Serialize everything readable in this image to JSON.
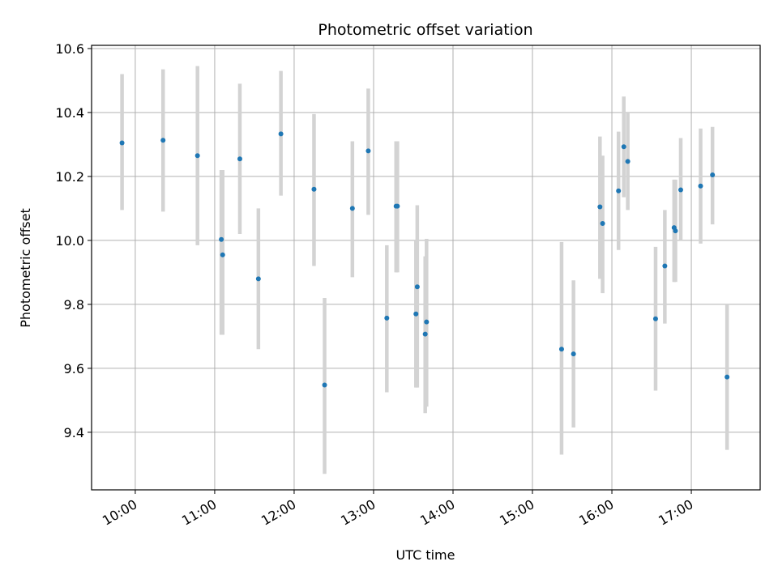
{
  "chart_data": {
    "type": "scatter",
    "title": "Photometric offset variation",
    "xlabel": "UTC time",
    "ylabel": "Photometric offset",
    "x_axis_type": "time",
    "xlim": [
      "09:27",
      "17:52"
    ],
    "ylim": [
      9.22,
      10.61
    ],
    "x_ticks": [
      "10:00",
      "11:00",
      "12:00",
      "13:00",
      "14:00",
      "15:00",
      "16:00",
      "17:00"
    ],
    "y_ticks": [
      9.4,
      9.6,
      9.8,
      10.0,
      10.2,
      10.4,
      10.6
    ],
    "y_tick_labels": [
      "9.4",
      "9.6",
      "9.8",
      "10.0",
      "10.2",
      "10.4",
      "10.6"
    ],
    "grid": true,
    "point_color": "#1f77b4",
    "errorbar_color": "#d3d3d3",
    "points": [
      {
        "time": "09:50",
        "y": 10.305,
        "ylow": 10.095,
        "yhigh": 10.52
      },
      {
        "time": "10:21",
        "y": 10.313,
        "ylow": 10.09,
        "yhigh": 10.535
      },
      {
        "time": "10:47",
        "y": 10.265,
        "ylow": 9.985,
        "yhigh": 10.545
      },
      {
        "time": "11:05",
        "y": 10.003,
        "ylow": 9.705,
        "yhigh": 10.22
      },
      {
        "time": "11:06",
        "y": 9.955,
        "ylow": 9.705,
        "yhigh": 10.22
      },
      {
        "time": "11:19",
        "y": 10.255,
        "ylow": 10.02,
        "yhigh": 10.49
      },
      {
        "time": "11:33",
        "y": 9.88,
        "ylow": 9.66,
        "yhigh": 10.1
      },
      {
        "time": "11:50",
        "y": 10.333,
        "ylow": 10.14,
        "yhigh": 10.53
      },
      {
        "time": "12:15",
        "y": 10.16,
        "ylow": 9.92,
        "yhigh": 10.395
      },
      {
        "time": "12:23",
        "y": 9.548,
        "ylow": 9.27,
        "yhigh": 9.82
      },
      {
        "time": "12:44",
        "y": 10.1,
        "ylow": 9.885,
        "yhigh": 10.31
      },
      {
        "time": "12:56",
        "y": 10.28,
        "ylow": 10.08,
        "yhigh": 10.475
      },
      {
        "time": "13:10",
        "y": 9.757,
        "ylow": 9.525,
        "yhigh": 9.985
      },
      {
        "time": "13:17",
        "y": 10.107,
        "ylow": 9.9,
        "yhigh": 10.31
      },
      {
        "time": "13:18",
        "y": 10.107,
        "ylow": 9.9,
        "yhigh": 10.31
      },
      {
        "time": "13:32",
        "y": 9.77,
        "ylow": 9.54,
        "yhigh": 10.0
      },
      {
        "time": "13:33",
        "y": 9.855,
        "ylow": 9.54,
        "yhigh": 10.11
      },
      {
        "time": "13:39",
        "y": 9.707,
        "ylow": 9.46,
        "yhigh": 9.95
      },
      {
        "time": "13:40",
        "y": 9.745,
        "ylow": 9.48,
        "yhigh": 10.005
      },
      {
        "time": "15:22",
        "y": 9.66,
        "ylow": 9.33,
        "yhigh": 9.995
      },
      {
        "time": "15:31",
        "y": 9.645,
        "ylow": 9.415,
        "yhigh": 9.875
      },
      {
        "time": "15:51",
        "y": 10.105,
        "ylow": 9.88,
        "yhigh": 10.325
      },
      {
        "time": "15:53",
        "y": 10.053,
        "ylow": 9.835,
        "yhigh": 10.265
      },
      {
        "time": "16:05",
        "y": 10.155,
        "ylow": 9.97,
        "yhigh": 10.34
      },
      {
        "time": "16:09",
        "y": 10.293,
        "ylow": 10.135,
        "yhigh": 10.45
      },
      {
        "time": "16:12",
        "y": 10.247,
        "ylow": 10.095,
        "yhigh": 10.4
      },
      {
        "time": "16:33",
        "y": 9.755,
        "ylow": 9.53,
        "yhigh": 9.98
      },
      {
        "time": "16:40",
        "y": 9.92,
        "ylow": 9.74,
        "yhigh": 10.095
      },
      {
        "time": "16:47",
        "y": 10.04,
        "ylow": 9.87,
        "yhigh": 10.19
      },
      {
        "time": "16:48",
        "y": 10.03,
        "ylow": 9.87,
        "yhigh": 10.19
      },
      {
        "time": "16:52",
        "y": 10.158,
        "ylow": 10.0,
        "yhigh": 10.32
      },
      {
        "time": "17:07",
        "y": 10.17,
        "ylow": 9.99,
        "yhigh": 10.35
      },
      {
        "time": "17:16",
        "y": 10.205,
        "ylow": 10.05,
        "yhigh": 10.355
      },
      {
        "time": "17:27",
        "y": 9.573,
        "ylow": 9.345,
        "yhigh": 9.8
      }
    ]
  }
}
